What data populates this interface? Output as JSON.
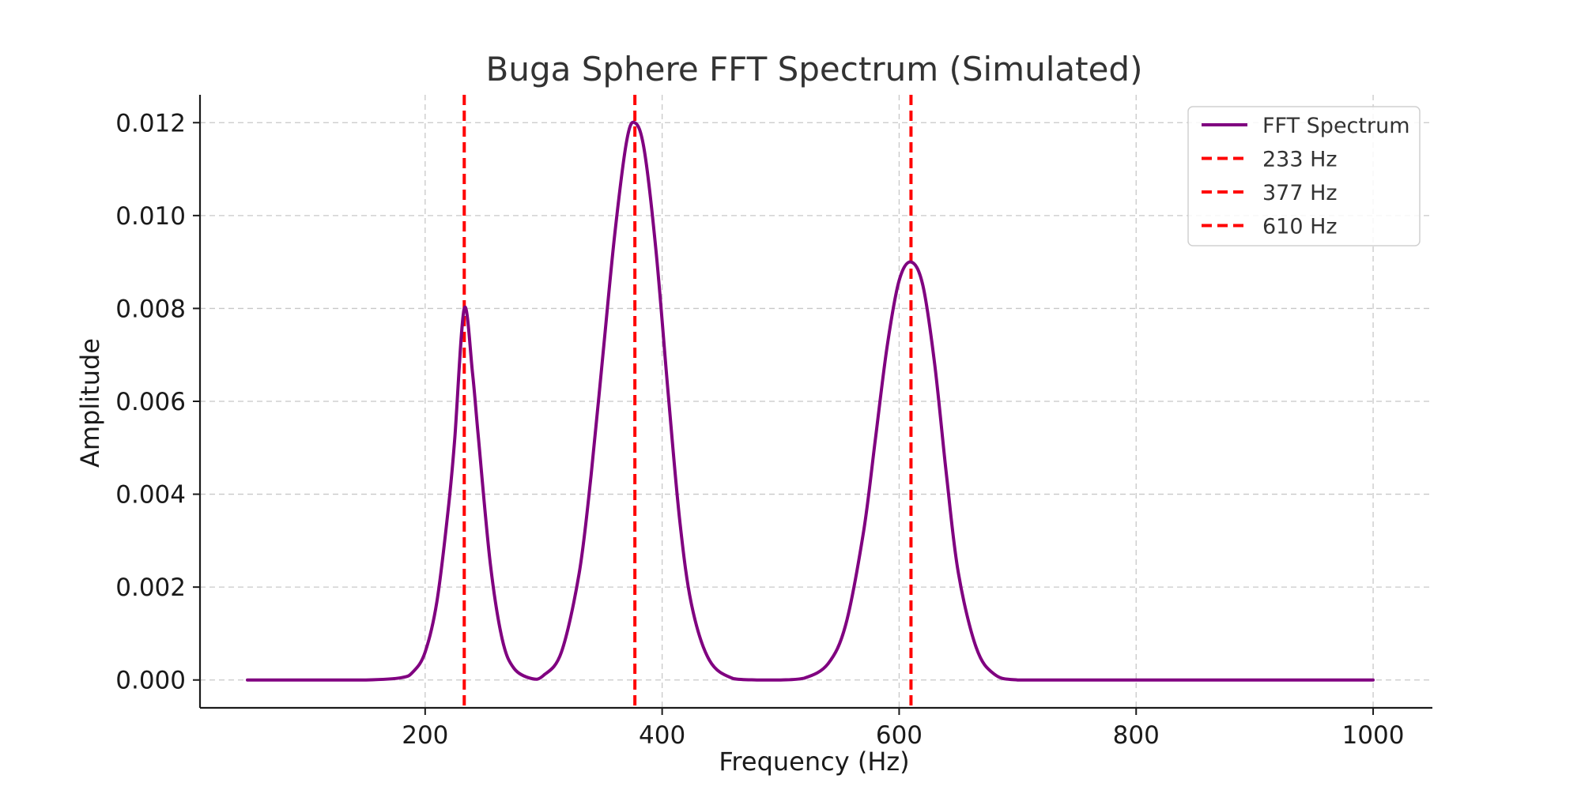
{
  "chart_data": {
    "type": "line",
    "title": "Buga Sphere FFT Spectrum (Simulated)",
    "xlabel": "Frequency (Hz)",
    "ylabel": "Amplitude",
    "xlim": [
      10,
      1050
    ],
    "ylim": [
      -0.0006,
      0.0126
    ],
    "x_ticks": [
      200,
      400,
      600,
      800,
      1000
    ],
    "x_tick_labels": [
      "200",
      "400",
      "600",
      "800",
      "1000"
    ],
    "y_ticks": [
      0.0,
      0.002,
      0.004,
      0.006,
      0.008,
      0.01,
      0.012
    ],
    "y_tick_labels": [
      "0.000",
      "0.002",
      "0.004",
      "0.006",
      "0.008",
      "0.010",
      "0.012"
    ],
    "grid": true,
    "legend_position": "top-right",
    "series": [
      {
        "name": "FFT Spectrum",
        "color": "#800080",
        "style": "solid",
        "x": [
          50,
          100,
          150,
          180,
          190,
          200,
          210,
          220,
          225,
          233,
          240,
          245,
          255,
          265,
          275,
          290,
          300,
          315,
          330,
          340,
          350,
          360,
          370,
          377,
          385,
          395,
          405,
          415,
          425,
          440,
          460,
          480,
          500,
          520,
          540,
          555,
          570,
          580,
          590,
          600,
          610,
          620,
          630,
          640,
          650,
          665,
          680,
          700,
          750,
          800,
          850,
          900,
          950,
          1000
        ],
        "y": [
          0.0,
          0.0,
          0.0,
          5e-05,
          0.00018,
          0.0006,
          0.0017,
          0.0038,
          0.0052,
          0.008,
          0.0066,
          0.0052,
          0.0025,
          0.00088,
          0.00025,
          3e-05,
          0.0001,
          0.0006,
          0.0023,
          0.0044,
          0.007,
          0.0096,
          0.0116,
          0.012,
          0.0114,
          0.0092,
          0.0062,
          0.0034,
          0.0016,
          0.00042,
          3e-05,
          0.0,
          0.0,
          4e-05,
          0.00035,
          0.0012,
          0.0032,
          0.0052,
          0.0072,
          0.0086,
          0.009,
          0.0085,
          0.0068,
          0.0044,
          0.0023,
          0.0007,
          0.00013,
          0.0,
          0.0,
          0.0,
          0.0,
          0.0,
          0.0,
          0.0
        ]
      },
      {
        "name": "233 Hz",
        "color": "#ff0000",
        "style": "dashed",
        "x": [
          233
        ]
      },
      {
        "name": "377 Hz",
        "color": "#ff0000",
        "style": "dashed",
        "x": [
          377
        ]
      },
      {
        "name": "610 Hz",
        "color": "#ff0000",
        "style": "dashed",
        "x": [
          610
        ]
      }
    ]
  }
}
